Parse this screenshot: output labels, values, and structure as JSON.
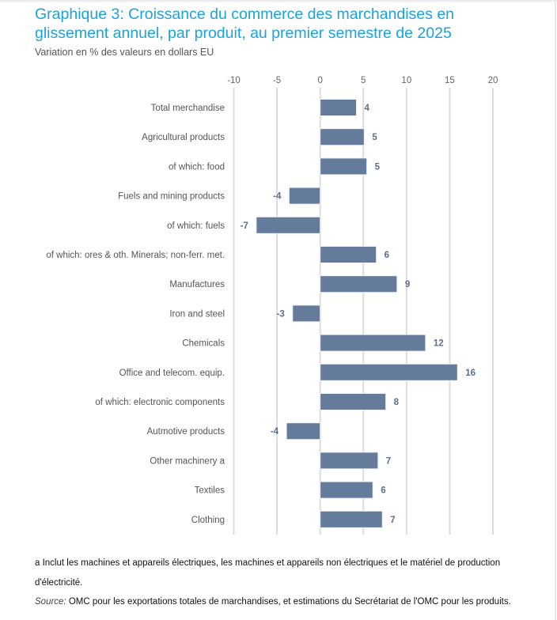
{
  "chart_data": {
    "type": "bar",
    "orientation": "horizontal",
    "title": "Graphique 3: Croissance du commerce des marchandises en glissement annuel, par produit, au premier semestre de 2025",
    "subtitle": "Variation en % des valeurs en dollars EU",
    "xlim": [
      -10,
      20
    ],
    "xticks": [
      "-10",
      "-5",
      "0",
      "5",
      "10",
      "15",
      "20"
    ],
    "tick_values": [
      -10,
      -5,
      0,
      5,
      10,
      15,
      20
    ],
    "grid": true,
    "bar_color": "#657b9b",
    "label_color": "#5a6f91",
    "categories": [
      "Total merchandise",
      "Agricultural products",
      "of which: food",
      "Fuels and mining products",
      "of which: fuels",
      "of which: ores & oth. Minerals; non-ferr. met.",
      "Manufactures",
      "Iron and steel",
      "Chemicals",
      "Office and telecom. equip.",
      "of which: electronic components",
      "Autmotive products",
      "Other machinery  a",
      "Textiles",
      "Clothing"
    ],
    "values": [
      4.2,
      5.1,
      5.4,
      -3.6,
      -7.4,
      6.5,
      8.9,
      -3.2,
      12.2,
      15.9,
      7.6,
      -3.9,
      6.7,
      6.1,
      7.2
    ],
    "data_labels": [
      "4",
      "5",
      "5",
      "-4",
      "-7",
      "6",
      "9",
      "-3",
      "12",
      "16",
      "8",
      "-4",
      "7",
      "6",
      "7"
    ]
  },
  "footnotes": {
    "note_line1": "a Inclut les machines et appareils électriques, les machines et appareils non électriques et le matériel de production",
    "note_line2": "d'électricité.",
    "source_label": "Source:",
    "source_text": " OMC pour les exportations totales de marchandises, et estimations du Secrétariat de l'OMC pour les produits."
  }
}
